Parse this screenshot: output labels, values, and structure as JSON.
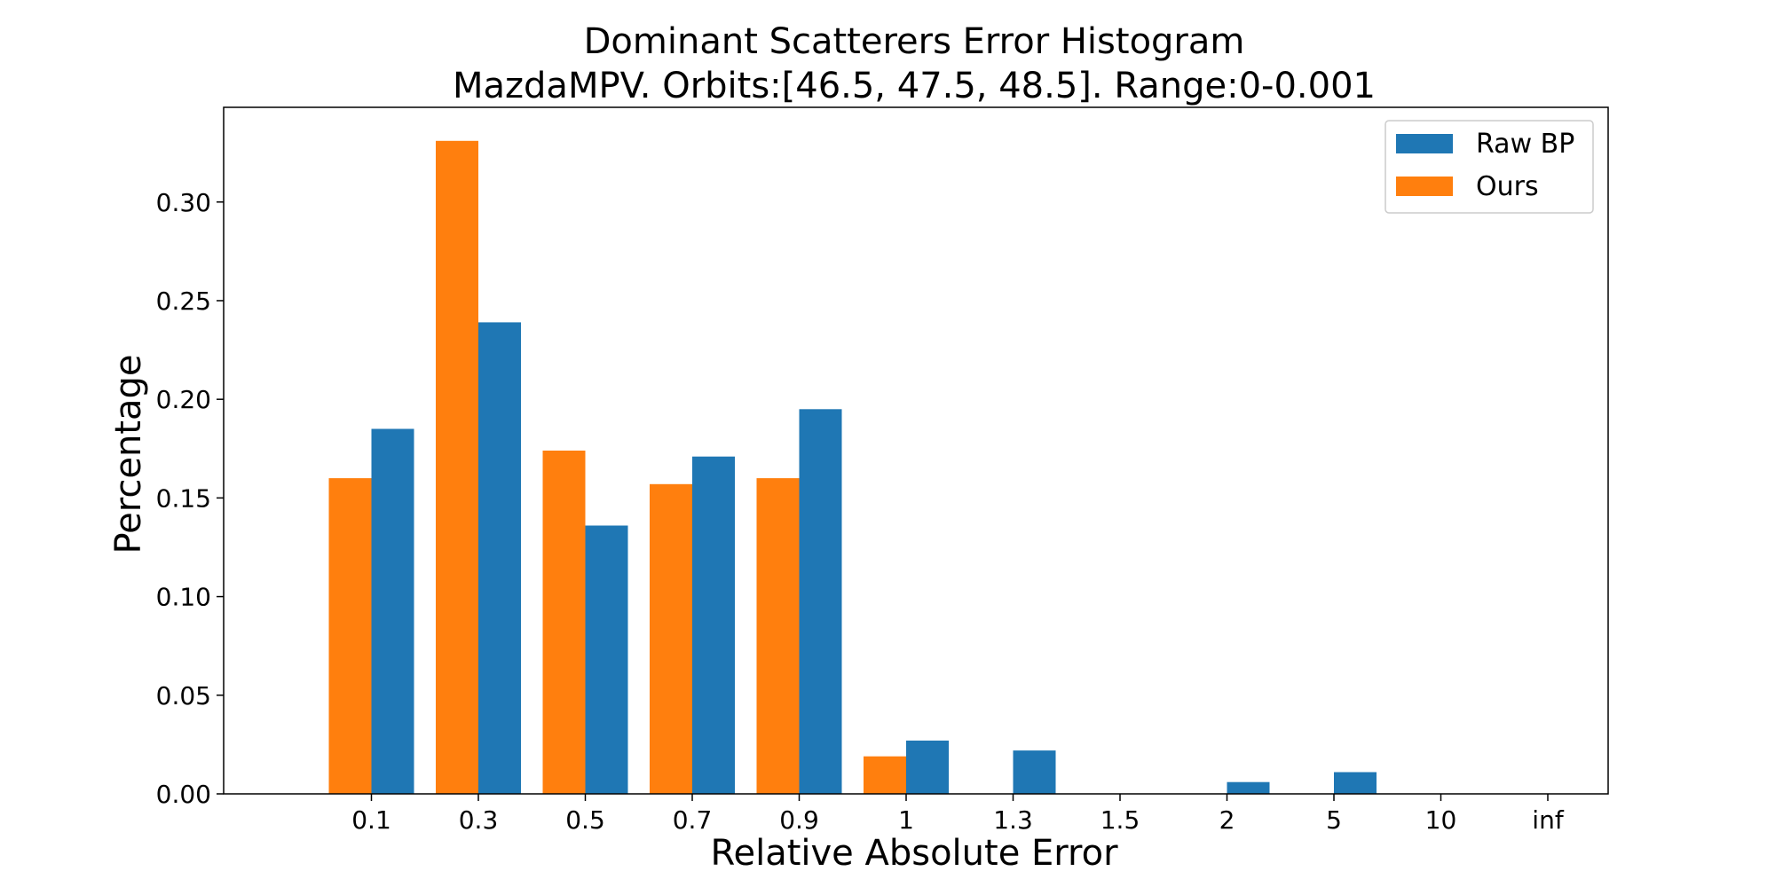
{
  "chart_data": {
    "type": "bar",
    "title": "Dominant Scatterers Error Histogram",
    "subtitle": "MazdaMPV. Orbits:[46.5, 47.5, 48.5]. Range:0-0.001",
    "xlabel": "Relative Absolute Error",
    "ylabel": "Percentage",
    "categories": [
      "0.1",
      "0.3",
      "0.5",
      "0.7",
      "0.9",
      "1",
      "1.3",
      "1.5",
      "2",
      "5",
      "10",
      "inf"
    ],
    "ylim": [
      0,
      0.348
    ],
    "yticks": [
      "0.00",
      "0.05",
      "0.10",
      "0.15",
      "0.20",
      "0.25",
      "0.30"
    ],
    "series": [
      {
        "name": "Ours",
        "color": "#ff7f0e",
        "values": [
          0.16,
          0.331,
          0.174,
          0.157,
          0.16,
          0.019,
          0.0,
          0.0,
          0.0,
          0.0,
          0.0,
          0.0
        ]
      },
      {
        "name": "Raw BP",
        "color": "#1f77b4",
        "values": [
          0.185,
          0.239,
          0.136,
          0.171,
          0.195,
          0.027,
          0.022,
          0.0,
          0.006,
          0.011,
          0.0,
          0.0
        ]
      }
    ],
    "legend": {
      "position": "top-right",
      "order": [
        "Raw BP",
        "Ours"
      ]
    },
    "grid": false
  }
}
